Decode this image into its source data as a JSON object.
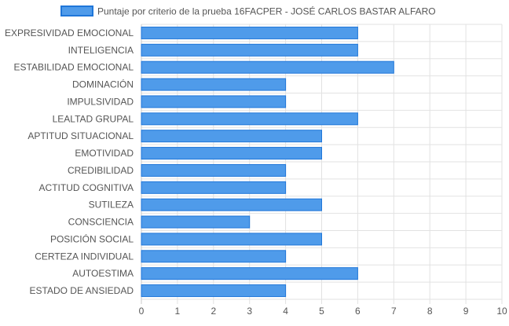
{
  "colors": {
    "bar_fill": "#4f9bea",
    "bar_stroke": "#1f76d9",
    "grid": "#e2e2e2",
    "grid_axis": "#c8c8c8",
    "text": "#555555",
    "legend_text": "#555555"
  },
  "chart_data": {
    "type": "bar",
    "orientation": "horizontal",
    "legend_position": "top-center",
    "grid": true,
    "series": [
      {
        "name": "Puntaje por criterio de la prueba 16FACPER - JOSÉ CARLOS BASTAR ALFARO",
        "values": [
          6,
          6,
          7,
          4,
          4,
          6,
          5,
          5,
          4,
          4,
          5,
          3,
          5,
          4,
          6,
          4
        ]
      }
    ],
    "categories": [
      "EXPRESIVIDAD EMOCIONAL",
      "INTELIGENCIA",
      "ESTABILIDAD EMOCIONAL",
      "DOMINACIÓN",
      "IMPULSIVIDAD",
      "LEALTAD GRUPAL",
      "APTITUD SITUACIONAL",
      "EMOTIVIDAD",
      "CREDIBILIDAD",
      "ACTITUD COGNITIVA",
      "SUTILEZA",
      "CONSCIENCIA",
      "POSICIÓN SOCIAL",
      "CERTEZA INDIVIDUAL",
      "AUTOESTIMA",
      "ESTADO DE ANSIEDAD"
    ],
    "xlim": [
      0,
      10
    ],
    "x_ticks": [
      "0",
      "1",
      "2",
      "3",
      "4",
      "5",
      "6",
      "7",
      "8",
      "9",
      "10"
    ]
  }
}
